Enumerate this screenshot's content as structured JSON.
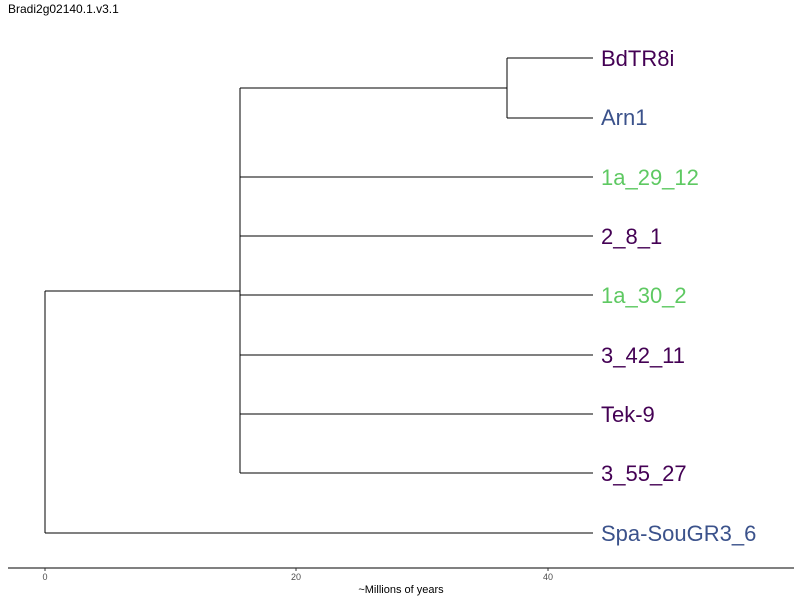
{
  "title": "Bradi2g02140.1.v3.1",
  "axis": {
    "label": "~Millions of years",
    "ticks": [
      "0",
      "20",
      "40"
    ]
  },
  "tips": [
    {
      "label": "BdTR8i",
      "color": "#440154"
    },
    {
      "label": "Arn1",
      "color": "#3b528b"
    },
    {
      "label": "1a_29_12",
      "color": "#5ec962"
    },
    {
      "label": "2_8_1",
      "color": "#440154"
    },
    {
      "label": "1a_30_2",
      "color": "#5ec962"
    },
    {
      "label": "3_42_11",
      "color": "#440154"
    },
    {
      "label": "Tek-9",
      "color": "#440154"
    },
    {
      "label": "3_55_27",
      "color": "#440154"
    },
    {
      "label": "Spa-SouGR3_6",
      "color": "#3b528b"
    }
  ]
}
